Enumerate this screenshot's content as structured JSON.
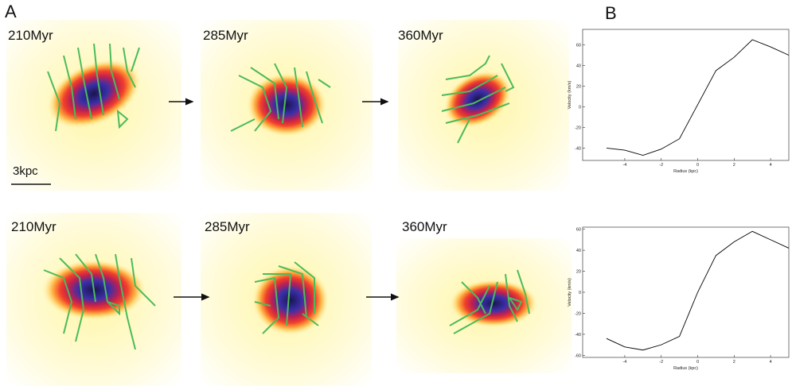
{
  "figure": {
    "panel_a_label": "A",
    "panel_b_label": "B",
    "scale_bar": "3kpc",
    "rows": [
      {
        "times": [
          "210Myr",
          "285Myr",
          "360Myr"
        ]
      },
      {
        "times": [
          "210Myr",
          "285Myr",
          "360Myr"
        ]
      }
    ]
  },
  "chart_data": [
    {
      "type": "line",
      "x_label": "Radius (kpc)",
      "y_label": "Velocity (km/s)",
      "x": [
        -5,
        -4,
        -3,
        -2,
        -1,
        0,
        1,
        2,
        3,
        4,
        5
      ],
      "series": [
        {
          "color": "#000000",
          "values": [
            -40,
            -42,
            -47,
            -41,
            -31,
            2,
            35,
            48,
            65,
            58,
            50
          ]
        }
      ],
      "xlim": [
        -5,
        5
      ],
      "xticks": [
        -4,
        -2,
        0,
        2,
        4
      ],
      "ylim": [
        -52,
        75
      ],
      "yticks": [
        -40,
        -20,
        0,
        20,
        40,
        60
      ]
    },
    {
      "type": "line",
      "x_label": "Radius (kpc)",
      "y_label": "Velocity (km/s)",
      "x": [
        -5,
        -4,
        -3,
        -2,
        -1,
        0,
        1,
        2,
        3,
        4,
        5
      ],
      "series": [
        {
          "color": "#000000",
          "values": [
            -44,
            -52,
            -55,
            -50,
            -42,
            0,
            35,
            48,
            58,
            50,
            42
          ]
        }
      ],
      "xlim": [
        -5,
        5
      ],
      "xticks": [
        -4,
        -2,
        0,
        2,
        4
      ],
      "ylim": [
        -62,
        62
      ],
      "yticks": [
        -60,
        -40,
        -20,
        0,
        20,
        40,
        60
      ]
    }
  ]
}
